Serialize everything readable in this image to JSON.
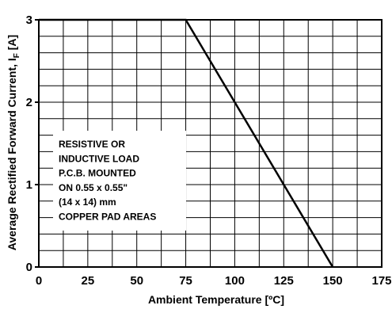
{
  "chart_data": {
    "type": "line",
    "xlabel": "Ambient Temperature [ºC]",
    "ylabel": "Average Rectified Forward Current, I",
    "ylabel_subscript": "F",
    "ylabel_unit": " [A]",
    "x_ticks": [
      0,
      25,
      50,
      75,
      100,
      125,
      150,
      175
    ],
    "y_ticks": [
      0,
      1,
      2,
      3
    ],
    "xlim": [
      0,
      175
    ],
    "ylim": [
      0,
      3
    ],
    "grid": true,
    "series": [
      {
        "x": [
          0,
          75,
          150
        ],
        "y": [
          3,
          3,
          0
        ]
      }
    ],
    "annotation": [
      "RESISTIVE OR",
      "INDUCTIVE LOAD",
      "P.C.B. MOUNTED",
      "ON 0.55 x 0.55\"",
      "(14 x 14) mm",
      "COPPER PAD AREAS"
    ]
  },
  "colors": {
    "background": "#ffffff",
    "ink": "#000000"
  }
}
